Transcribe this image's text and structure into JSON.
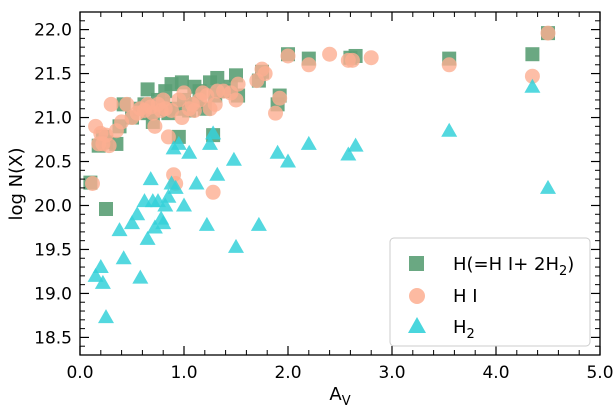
{
  "chart_data": {
    "type": "scatter",
    "xlabel": "A",
    "xlabel_sub": "V",
    "ylabel": "log N(X)",
    "xlim": [
      0.0,
      5.0
    ],
    "ylim": [
      18.3,
      22.2
    ],
    "xticks": [
      0.0,
      1.0,
      2.0,
      3.0,
      4.0,
      5.0
    ],
    "xtick_labels": [
      "0.0",
      "1.0",
      "2.0",
      "3.0",
      "4.0",
      "5.0"
    ],
    "yticks": [
      18.5,
      19.0,
      19.5,
      20.0,
      20.5,
      21.0,
      21.5,
      22.0
    ],
    "ytick_labels": [
      "18.5",
      "19.0",
      "19.5",
      "20.0",
      "20.5",
      "21.0",
      "21.5",
      "22.0"
    ],
    "grid": false,
    "legend_position": "bottom-right",
    "series": [
      {
        "name": "H(=H I+ 2H2)",
        "legend_main": "H(=H I+ 2H",
        "legend_sub": "2",
        "legend_tail": ")",
        "marker": "square",
        "color": "#5a9e74",
        "points": [
          [
            0.1,
            20.26
          ],
          [
            0.18,
            20.68
          ],
          [
            0.22,
            20.78
          ],
          [
            0.25,
            20.72
          ],
          [
            0.25,
            19.96
          ],
          [
            0.35,
            20.7
          ],
          [
            0.38,
            20.9
          ],
          [
            0.42,
            21.15
          ],
          [
            0.5,
            21.0
          ],
          [
            0.58,
            21.1
          ],
          [
            0.62,
            21.15
          ],
          [
            0.65,
            21.05
          ],
          [
            0.65,
            21.32
          ],
          [
            0.7,
            20.95
          ],
          [
            0.72,
            21.1
          ],
          [
            0.75,
            21.2
          ],
          [
            0.8,
            21.15
          ],
          [
            0.82,
            21.3
          ],
          [
            0.85,
            21.05
          ],
          [
            0.88,
            21.38
          ],
          [
            0.92,
            21.1
          ],
          [
            0.95,
            20.78
          ],
          [
            0.98,
            21.4
          ],
          [
            1.0,
            21.2
          ],
          [
            1.05,
            21.08
          ],
          [
            1.1,
            21.35
          ],
          [
            1.12,
            21.15
          ],
          [
            1.15,
            21.3
          ],
          [
            1.2,
            21.1
          ],
          [
            1.25,
            21.4
          ],
          [
            1.28,
            20.8
          ],
          [
            1.3,
            21.25
          ],
          [
            1.32,
            21.45
          ],
          [
            1.38,
            21.3
          ],
          [
            1.45,
            21.35
          ],
          [
            1.5,
            21.48
          ],
          [
            1.52,
            21.25
          ],
          [
            1.72,
            21.42
          ],
          [
            1.75,
            21.52
          ],
          [
            1.9,
            21.15
          ],
          [
            1.92,
            21.25
          ],
          [
            2.0,
            21.72
          ],
          [
            2.2,
            21.67
          ],
          [
            2.6,
            21.68
          ],
          [
            2.65,
            21.7
          ],
          [
            3.55,
            21.67
          ],
          [
            4.35,
            21.72
          ],
          [
            4.5,
            21.96
          ]
        ]
      },
      {
        "name": "H I",
        "marker": "circle",
        "color": "#fdae91",
        "points": [
          [
            0.12,
            20.25
          ],
          [
            0.15,
            20.9
          ],
          [
            0.18,
            20.7
          ],
          [
            0.2,
            20.82
          ],
          [
            0.22,
            20.7
          ],
          [
            0.25,
            20.8
          ],
          [
            0.28,
            20.68
          ],
          [
            0.3,
            21.15
          ],
          [
            0.35,
            20.85
          ],
          [
            0.4,
            20.95
          ],
          [
            0.45,
            21.15
          ],
          [
            0.5,
            21.0
          ],
          [
            0.55,
            21.05
          ],
          [
            0.58,
            21.1
          ],
          [
            0.62,
            21.08
          ],
          [
            0.65,
            21.15
          ],
          [
            0.68,
            21.12
          ],
          [
            0.7,
            21.05
          ],
          [
            0.72,
            20.9
          ],
          [
            0.75,
            21.15
          ],
          [
            0.78,
            21.08
          ],
          [
            0.8,
            21.2
          ],
          [
            0.82,
            21.1
          ],
          [
            0.85,
            20.78
          ],
          [
            0.88,
            21.08
          ],
          [
            0.9,
            20.35
          ],
          [
            0.92,
            20.25
          ],
          [
            0.95,
            21.2
          ],
          [
            0.98,
            21.0
          ],
          [
            1.0,
            21.28
          ],
          [
            1.05,
            21.1
          ],
          [
            1.08,
            21.15
          ],
          [
            1.1,
            21.08
          ],
          [
            1.15,
            21.2
          ],
          [
            1.18,
            21.28
          ],
          [
            1.22,
            21.25
          ],
          [
            1.25,
            21.1
          ],
          [
            1.28,
            20.15
          ],
          [
            1.3,
            21.15
          ],
          [
            1.32,
            21.3
          ],
          [
            1.38,
            21.3
          ],
          [
            1.45,
            21.28
          ],
          [
            1.5,
            21.2
          ],
          [
            1.52,
            21.38
          ],
          [
            1.7,
            21.42
          ],
          [
            1.75,
            21.55
          ],
          [
            1.78,
            21.5
          ],
          [
            1.88,
            21.05
          ],
          [
            1.92,
            21.22
          ],
          [
            2.0,
            21.7
          ],
          [
            2.2,
            21.6
          ],
          [
            2.4,
            21.72
          ],
          [
            2.58,
            21.65
          ],
          [
            2.62,
            21.65
          ],
          [
            2.8,
            21.68
          ],
          [
            3.55,
            21.6
          ],
          [
            4.35,
            21.47
          ],
          [
            4.5,
            21.96
          ]
        ]
      },
      {
        "name": "H2",
        "legend_main": "H",
        "legend_sub": "2",
        "legend_tail": "",
        "marker": "triangle",
        "color": "#35d1d9",
        "points": [
          [
            0.15,
            19.2
          ],
          [
            0.2,
            19.3
          ],
          [
            0.22,
            19.12
          ],
          [
            0.25,
            18.73
          ],
          [
            0.38,
            19.72
          ],
          [
            0.42,
            19.4
          ],
          [
            0.5,
            19.8
          ],
          [
            0.55,
            19.9
          ],
          [
            0.58,
            19.18
          ],
          [
            0.62,
            20.05
          ],
          [
            0.65,
            19.62
          ],
          [
            0.68,
            20.3
          ],
          [
            0.7,
            20.05
          ],
          [
            0.72,
            19.75
          ],
          [
            0.75,
            20.05
          ],
          [
            0.78,
            19.85
          ],
          [
            0.8,
            19.8
          ],
          [
            0.82,
            20.0
          ],
          [
            0.85,
            20.1
          ],
          [
            0.88,
            20.25
          ],
          [
            0.9,
            20.65
          ],
          [
            0.92,
            20.2
          ],
          [
            0.95,
            20.7
          ],
          [
            1.0,
            20.0
          ],
          [
            1.05,
            20.6
          ],
          [
            1.12,
            20.25
          ],
          [
            1.22,
            19.78
          ],
          [
            1.25,
            20.7
          ],
          [
            1.28,
            20.82
          ],
          [
            1.32,
            20.35
          ],
          [
            1.48,
            20.52
          ],
          [
            1.5,
            19.53
          ],
          [
            1.72,
            19.78
          ],
          [
            1.9,
            20.6
          ],
          [
            2.0,
            20.5
          ],
          [
            2.2,
            20.7
          ],
          [
            2.58,
            20.58
          ],
          [
            2.65,
            20.68
          ],
          [
            3.55,
            20.85
          ],
          [
            4.35,
            21.35
          ],
          [
            4.5,
            20.2
          ]
        ]
      }
    ]
  }
}
